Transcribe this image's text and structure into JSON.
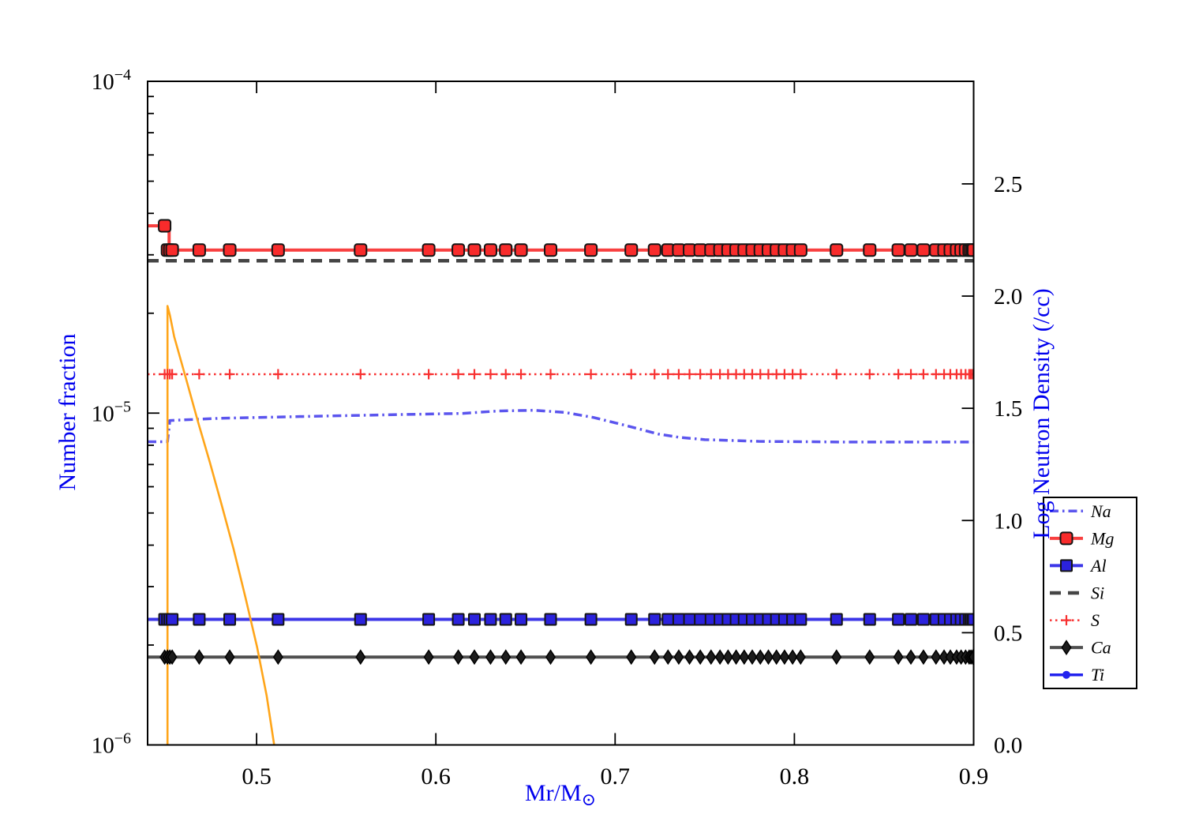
{
  "figure": {
    "xlabel_main": "Mr/M",
    "xlabel_sub": "⊙",
    "ylabel_left": "Number fraction",
    "ylabel_right": "Log Neutron Density (/cc)",
    "axis_label_color": "#0000ee",
    "tick_color": "#000000",
    "background": "#ffffff"
  },
  "chart_data": {
    "type": "line",
    "title": "",
    "xlabel": "Mr/M☉",
    "ylabel_left": "Number fraction",
    "ylabel_right": "Log Neutron Density (/cc)",
    "x_range": [
      0.4392,
      0.9
    ],
    "x_ticks": [
      0.5,
      0.6,
      0.7,
      0.8,
      0.9
    ],
    "x_tick_labels": [
      "0.5",
      "0.6",
      "0.7",
      "0.8",
      "0.9"
    ],
    "y_left": {
      "scale": "log",
      "range": [
        1e-06,
        0.0001
      ],
      "ticks": [
        {
          "v": 0.0001,
          "base": "10",
          "exp": "−4"
        },
        {
          "v": 1e-05,
          "base": "10",
          "exp": "−5"
        },
        {
          "v": 1e-06,
          "base": "10",
          "exp": "−6"
        }
      ]
    },
    "y_right": {
      "scale": "linear",
      "range": [
        0,
        2.957
      ],
      "ticks": [
        0,
        0.5,
        1,
        1.5,
        2,
        2.5
      ],
      "tick_labels": [
        "0.0",
        "0.5",
        "1.0",
        "1.5",
        "2.0",
        "2.5"
      ]
    },
    "grid": "off",
    "legend_position": "right",
    "marker_grid_x": [
      0.4487,
      0.4503,
      0.4516,
      0.4529,
      0.468,
      0.485,
      0.512,
      0.558,
      0.596,
      0.6125,
      0.6215,
      0.6305,
      0.639,
      0.6475,
      0.664,
      0.6865,
      0.709,
      0.722,
      0.7295,
      0.7355,
      0.7415,
      0.7475,
      0.7535,
      0.7585,
      0.763,
      0.7675,
      0.772,
      0.7765,
      0.781,
      0.7855,
      0.79,
      0.7945,
      0.799,
      0.8035,
      0.8235,
      0.842,
      0.858,
      0.865,
      0.872,
      0.879,
      0.8835,
      0.887,
      0.8905,
      0.893,
      0.8955,
      0.8975,
      0.8985,
      0.8995,
      0.9
    ],
    "series": [
      {
        "name": "Na",
        "axis": "left",
        "in_legend": true,
        "line": {
          "color": "#5b55ee",
          "width": 3.5,
          "dash": "dashdot"
        },
        "marker": null,
        "points": [
          [
            0.4392,
            8.2e-06
          ],
          [
            0.4503,
            8.2e-06
          ],
          [
            0.4516,
            9.5e-06
          ],
          [
            0.48,
            9.65e-06
          ],
          [
            0.53,
            9.78e-06
          ],
          [
            0.58,
            9.9e-06
          ],
          [
            0.615,
            9.98e-06
          ],
          [
            0.635,
            1.015e-05
          ],
          [
            0.655,
            1.02e-05
          ],
          [
            0.672,
            1.005e-05
          ],
          [
            0.688,
            9.7e-06
          ],
          [
            0.7,
            9.35e-06
          ],
          [
            0.712,
            9e-06
          ],
          [
            0.724,
            8.65e-06
          ],
          [
            0.736,
            8.45e-06
          ],
          [
            0.75,
            8.32e-06
          ],
          [
            0.78,
            8.22e-06
          ],
          [
            0.83,
            8.18e-06
          ],
          [
            0.9,
            8.18e-06
          ]
        ]
      },
      {
        "name": "Mg",
        "axis": "left",
        "in_legend": true,
        "line": {
          "color": "#f84040",
          "width": 4,
          "dash": "solid"
        },
        "marker": {
          "shape": "rounded-square",
          "size": 15,
          "fill": "#f82b2b",
          "edge": "#141414",
          "edge_width": 2,
          "x_list": "grid_rest",
          "y_const": 3.1e-05,
          "extra": [
            [
              0.4487,
              3.67e-05
            ]
          ]
        },
        "points": [
          [
            0.4392,
            3.67e-05
          ],
          [
            0.4512,
            3.67e-05
          ],
          [
            0.4512,
            3.1e-05
          ],
          [
            0.9,
            3.1e-05
          ]
        ]
      },
      {
        "name": "Al",
        "axis": "left",
        "in_legend": true,
        "line": {
          "color": "#3c36e8",
          "width": 4,
          "dash": "solid"
        },
        "marker": {
          "shape": "square",
          "size": 14,
          "fill": "#2b22dd",
          "edge": "#141414",
          "edge_width": 2,
          "x_list": "grid_all",
          "y_const": 2.39e-06,
          "extra": []
        },
        "points": [
          [
            0.4392,
            2.39e-06
          ],
          [
            0.9,
            2.39e-06
          ]
        ]
      },
      {
        "name": "Si",
        "axis": "left",
        "in_legend": true,
        "line": {
          "color": "#454545",
          "width": 4.5,
          "dash": "dashed"
        },
        "marker": null,
        "points": [
          [
            0.4392,
            2.88e-05
          ],
          [
            0.9,
            2.88e-05
          ]
        ]
      },
      {
        "name": "S",
        "axis": "left",
        "in_legend": true,
        "line": {
          "color": "#f83030",
          "width": 2.5,
          "dash": "dotted"
        },
        "marker": {
          "shape": "plus",
          "size": 13,
          "fill": "#f83030",
          "edge": "#f83030",
          "edge_width": 2.2,
          "x_list": "grid_all",
          "y_const": 1.31e-05,
          "extra": []
        },
        "points": [
          [
            0.4392,
            1.31e-05
          ],
          [
            0.9,
            1.31e-05
          ]
        ]
      },
      {
        "name": "Ca",
        "axis": "left",
        "in_legend": true,
        "line": {
          "color": "#4f4f4f",
          "width": 4,
          "dash": "solid"
        },
        "marker": {
          "shape": "diamond",
          "size": 17,
          "fill": "#1c1c1c",
          "edge": "#000000",
          "edge_width": 1.5,
          "x_list": "grid_all",
          "y_const": 1.84e-06,
          "extra": []
        },
        "points": [
          [
            0.4392,
            1.84e-06
          ],
          [
            0.9,
            1.84e-06
          ]
        ]
      },
      {
        "name": "Ti",
        "axis": "left",
        "in_legend": true,
        "line": {
          "color": "#2222ee",
          "width": 3.5,
          "dash": "solid"
        },
        "marker": {
          "shape": "circle",
          "size": 9,
          "fill": "#2222ee",
          "edge": "#2222ee",
          "edge_width": 1,
          "x_list": null,
          "y_const": null,
          "extra": []
        },
        "points": [],
        "note": "below plotted y range"
      },
      {
        "name": "Neutron density",
        "axis": "right",
        "in_legend": false,
        "line": {
          "color": "#ffa519",
          "width": 2.6,
          "dash": "solid"
        },
        "marker": null,
        "points": [
          [
            0.4503,
            0.0
          ],
          [
            0.4503,
            1.956
          ],
          [
            0.4516,
            1.916
          ],
          [
            0.454,
            1.82
          ],
          [
            0.4607,
            1.63
          ],
          [
            0.4673,
            1.44
          ],
          [
            0.4739,
            1.26
          ],
          [
            0.4805,
            1.07
          ],
          [
            0.4871,
            0.875
          ],
          [
            0.4937,
            0.66
          ],
          [
            0.5003,
            0.435
          ],
          [
            0.5056,
            0.22
          ],
          [
            0.5098,
            0.0
          ]
        ]
      }
    ],
    "legend": {
      "order": [
        "Na",
        "Mg",
        "Al",
        "Si",
        "S",
        "Ca",
        "Ti"
      ]
    }
  }
}
